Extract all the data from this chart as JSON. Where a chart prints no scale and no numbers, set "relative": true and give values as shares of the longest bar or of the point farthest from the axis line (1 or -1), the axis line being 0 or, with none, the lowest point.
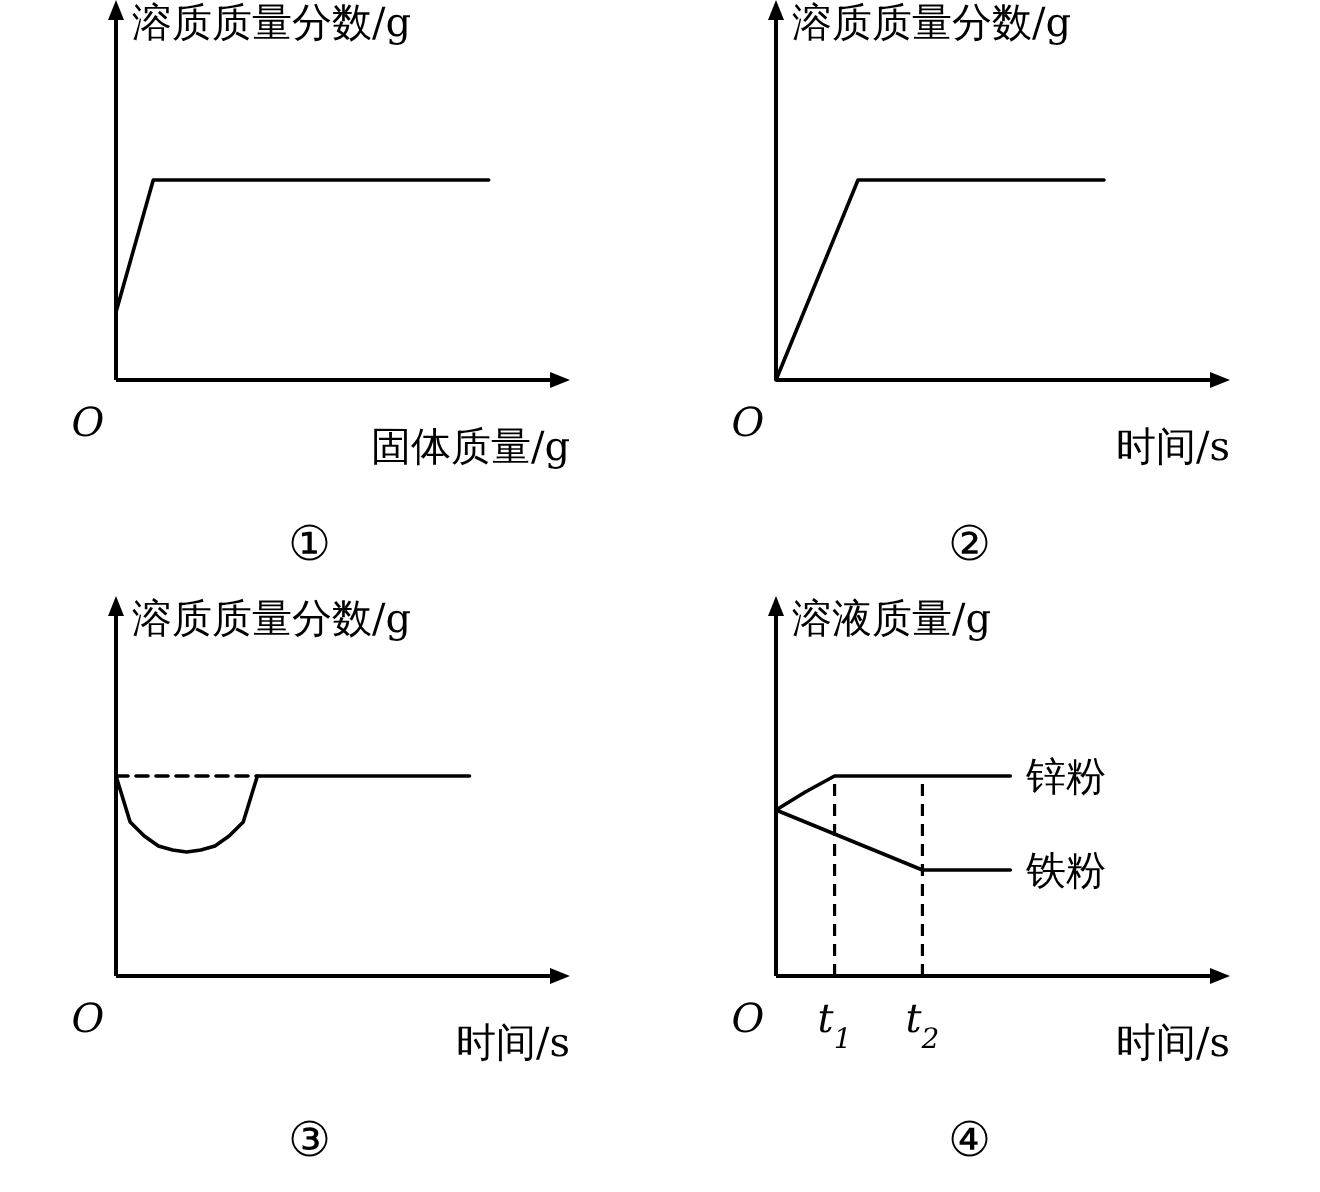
{
  "chart_data": [
    {
      "type": "line",
      "title": "①",
      "xlabel": "固体质量/g",
      "ylabel": "溶质质量分数/g",
      "relative": true,
      "annotations": [
        "O"
      ],
      "categories": [
        null,
        null,
        null,
        null,
        null,
        null,
        null,
        null,
        null,
        null,
        null,
        null
      ],
      "series": [
        {
          "color": "#000000",
          "line_style": "solid",
          "values": [
            0.34,
            1,
            1,
            1,
            1,
            1,
            1,
            1,
            1,
            1,
            1,
            null
          ]
        }
      ]
    },
    {
      "type": "line",
      "title": "②",
      "xlabel": "时间/s",
      "ylabel": "溶质质量分数/g",
      "relative": true,
      "annotations": [
        "O"
      ],
      "categories": [
        null,
        null,
        null,
        null,
        null,
        null
      ],
      "series": [
        {
          "color": "#000000",
          "line_style": "solid",
          "values": [
            0,
            1,
            1,
            1,
            1,
            null
          ]
        }
      ]
    },
    {
      "type": "line",
      "title": "③",
      "xlabel": "时间/s",
      "ylabel": "溶质质量分数/g",
      "relative": true,
      "annotations": [
        "O"
      ],
      "categories": [
        null,
        null,
        null,
        null,
        null,
        null,
        null,
        null,
        null,
        null,
        null,
        null,
        null,
        null,
        null,
        null,
        null,
        null,
        null,
        null,
        null,
        null,
        null,
        null,
        null,
        null,
        null,
        null,
        null,
        null
      ],
      "series": [
        {
          "color": "#000000",
          "line_style": "solid",
          "values": [
            1,
            0.77,
            0.7,
            0.65,
            0.63,
            0.62,
            0.63,
            0.65,
            0.7,
            0.77,
            1,
            1,
            1,
            1,
            1,
            1,
            1,
            1,
            1,
            1,
            1,
            1,
            1,
            1,
            1,
            1,
            null,
            null,
            null,
            null
          ]
        },
        {
          "color": "#000000",
          "line_style": "dashed",
          "values": [
            1,
            1,
            1,
            1,
            1,
            1,
            1,
            1,
            1,
            1,
            1,
            null,
            null,
            null,
            null,
            null,
            null,
            null,
            null,
            null,
            null,
            null,
            null,
            null,
            null,
            null,
            null,
            null,
            null,
            null
          ]
        }
      ]
    },
    {
      "type": "line",
      "title": "④",
      "xlabel": "时间/s",
      "ylabel": "溶液质量/g",
      "relative": true,
      "annotations": [
        "O"
      ],
      "categories": [
        null,
        null,
        "t$_{1}$",
        null,
        null,
        "t$_{2}$",
        null,
        null,
        null,
        null,
        null,
        null,
        null,
        null,
        null
      ],
      "ref_lines": [
        {
          "axis": "x",
          "value": "t$_{1}$",
          "line_style": "dashed"
        },
        {
          "axis": "x",
          "value": "t$_{2}$",
          "line_style": "dashed"
        }
      ],
      "series": [
        {
          "name": "锌粉",
          "color": "#000000",
          "line_style": "solid",
          "values": [
            0.83,
            0.92,
            1,
            1,
            1,
            1,
            1,
            1,
            1,
            null,
            null,
            null,
            null,
            null,
            null
          ]
        },
        {
          "name": "铁粉",
          "color": "#000000",
          "line_style": "solid",
          "values": [
            0.83,
            0.77,
            0.71,
            0.65,
            0.59,
            0.53,
            0.53,
            0.53,
            0.53,
            null,
            null,
            null,
            null,
            null,
            null
          ]
        }
      ]
    }
  ]
}
